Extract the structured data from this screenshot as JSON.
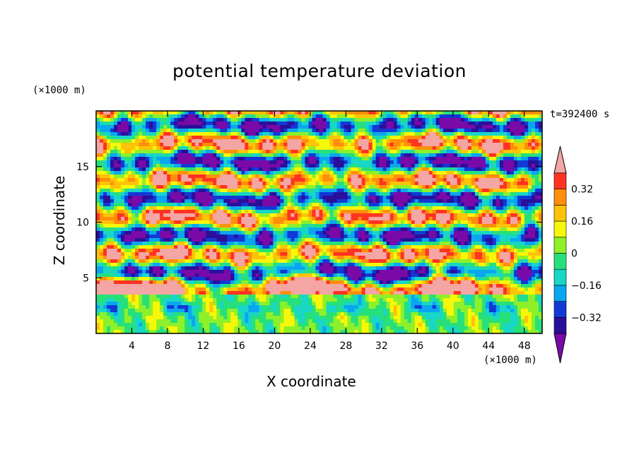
{
  "title": "potential temperature deviation",
  "time_label": "t=392400 s",
  "chart_data": {
    "type": "heatmap",
    "title": "potential temperature deviation",
    "xlabel": "X coordinate",
    "ylabel": "Z coordinate",
    "x_unit": "(×1000 m)",
    "y_unit": "(×1000 m)",
    "xlim": [
      0,
      50
    ],
    "ylim": [
      0,
      20
    ],
    "x_ticks": [
      4,
      8,
      12,
      16,
      20,
      24,
      28,
      32,
      36,
      40,
      44,
      48
    ],
    "y_ticks": [
      5,
      10,
      15
    ],
    "colorbar": {
      "levels": [
        -0.4,
        -0.32,
        -0.24,
        -0.16,
        -0.08,
        0,
        0.08,
        0.16,
        0.24,
        0.32,
        0.4
      ],
      "tick_labels": [
        "0.32",
        "0.16",
        "0",
        "−0.16",
        "−0.32"
      ],
      "tick_values": [
        0.32,
        0.16,
        0,
        -0.16,
        -0.32
      ],
      "colors": [
        "#7a0aa8",
        "#2a0f99",
        "#1238d6",
        "#0aa6f0",
        "#19d6c6",
        "#27e07a",
        "#8ef02a",
        "#f7f70a",
        "#ffc308",
        "#ff8f0a",
        "#ff3322",
        "#f4a6a4"
      ],
      "extend": "both"
    }
  }
}
